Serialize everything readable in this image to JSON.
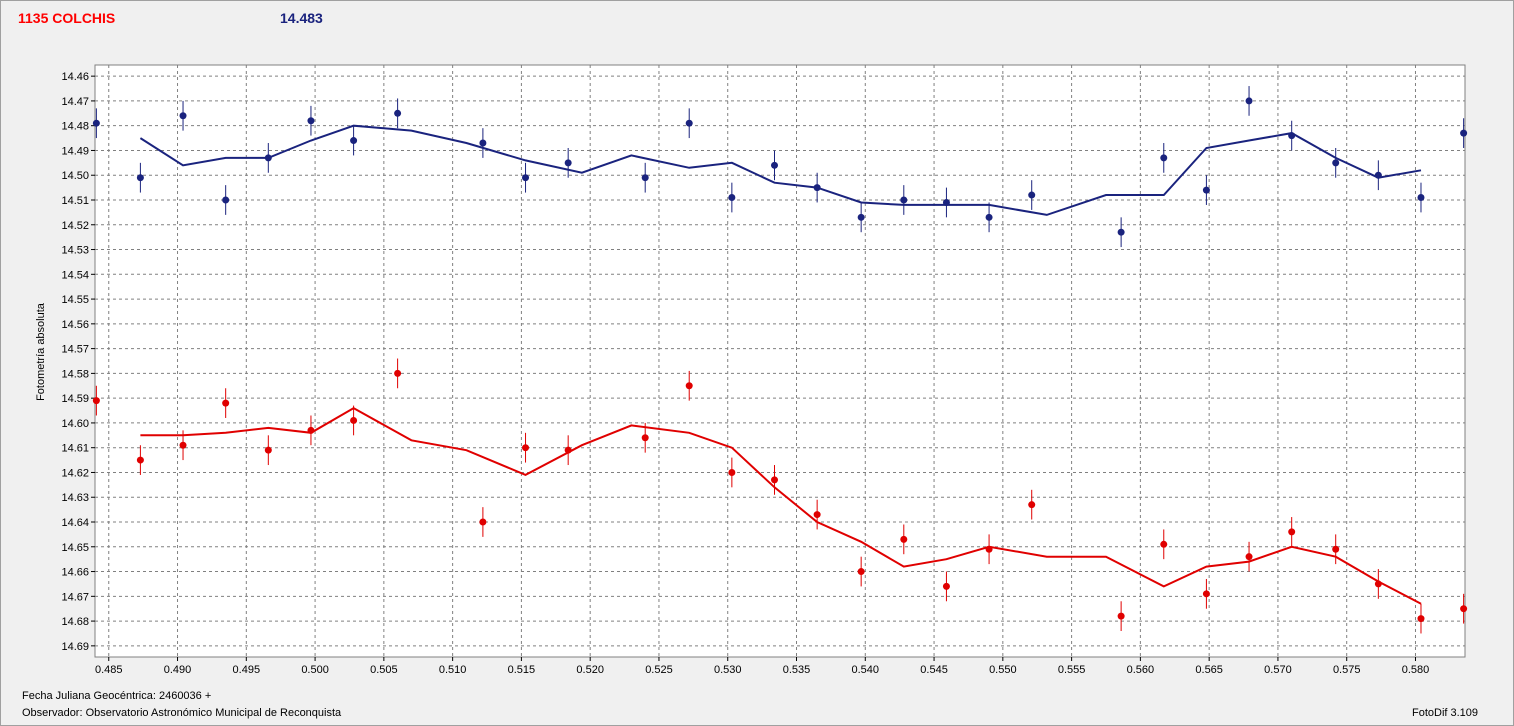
{
  "header": {
    "object_name": "1135 COLCHIS",
    "object_color": "#ff0000",
    "magnitude": "14.483",
    "magnitude_color": "#1a237e"
  },
  "footer": {
    "jd_label": "Fecha Juliana Geocéntrica: 2460036 +",
    "observer_label": "Observador: Observatorio Astronómico Municipal de Reconquista",
    "software": "FotoDif 3.109"
  },
  "chart_data": {
    "type": "scatter",
    "ylabel": "Fotometría absoluta",
    "xlim": [
      0.484,
      0.5836
    ],
    "ylim": [
      14.4555,
      14.6945
    ],
    "y_inverted": true,
    "grid": true,
    "x_ticks": [
      0.485,
      0.49,
      0.495,
      0.5,
      0.505,
      0.51,
      0.515,
      0.52,
      0.525,
      0.53,
      0.535,
      0.54,
      0.545,
      0.55,
      0.555,
      0.56,
      0.565,
      0.57,
      0.575,
      0.58
    ],
    "x_tick_labels": [
      "0.485",
      "0.490",
      "0.495",
      "0.500",
      "0.505",
      "0.510",
      "0.515",
      "0.520",
      "0.525",
      "0.530",
      "0.535",
      "0.540",
      "0.545",
      "0.550",
      "0.555",
      "0.560",
      "0.565",
      "0.570",
      "0.575",
      "0.580"
    ],
    "y_ticks": [
      14.46,
      14.47,
      14.48,
      14.49,
      14.5,
      14.51,
      14.52,
      14.53,
      14.54,
      14.55,
      14.56,
      14.57,
      14.58,
      14.59,
      14.6,
      14.61,
      14.62,
      14.63,
      14.64,
      14.65,
      14.66,
      14.67,
      14.68,
      14.69
    ],
    "y_tick_labels": [
      "14.46",
      "14.47",
      "14.48",
      "14.49",
      "14.50",
      "14.51",
      "14.52",
      "14.53",
      "14.54",
      "14.55",
      "14.56",
      "14.57",
      "14.58",
      "14.59",
      "14.60",
      "14.61",
      "14.62",
      "14.63",
      "14.64",
      "14.65",
      "14.66",
      "14.67",
      "14.68",
      "14.69"
    ],
    "error_bar": 0.006,
    "series": [
      {
        "color": "#1a237e",
        "points": [
          [
            0.4841,
            14.479
          ],
          [
            0.4873,
            14.501
          ],
          [
            0.4904,
            14.476
          ],
          [
            0.4935,
            14.51
          ],
          [
            0.4966,
            14.493
          ],
          [
            0.4997,
            14.478
          ],
          [
            0.5028,
            14.486
          ],
          [
            0.506,
            14.475
          ],
          [
            0.5122,
            14.487
          ],
          [
            0.5153,
            14.501
          ],
          [
            0.5184,
            14.495
          ],
          [
            0.524,
            14.501
          ],
          [
            0.5272,
            14.479
          ],
          [
            0.5303,
            14.509
          ],
          [
            0.5334,
            14.496
          ],
          [
            0.5365,
            14.505
          ],
          [
            0.5397,
            14.517
          ],
          [
            0.5428,
            14.51
          ],
          [
            0.5459,
            14.511
          ],
          [
            0.549,
            14.517
          ],
          [
            0.5521,
            14.508
          ],
          [
            0.5586,
            14.523
          ],
          [
            0.5617,
            14.493
          ],
          [
            0.5648,
            14.506
          ],
          [
            0.5679,
            14.47
          ],
          [
            0.571,
            14.484
          ],
          [
            0.5742,
            14.495
          ],
          [
            0.5773,
            14.5
          ],
          [
            0.5804,
            14.509
          ],
          [
            0.5835,
            14.483
          ]
        ],
        "trend": [
          [
            0.4873,
            14.485
          ],
          [
            0.4904,
            14.496
          ],
          [
            0.4935,
            14.493
          ],
          [
            0.4966,
            14.493
          ],
          [
            0.4997,
            14.486
          ],
          [
            0.5028,
            14.48
          ],
          [
            0.507,
            14.482
          ],
          [
            0.511,
            14.487
          ],
          [
            0.5153,
            14.494
          ],
          [
            0.5194,
            14.499
          ],
          [
            0.523,
            14.492
          ],
          [
            0.5272,
            14.497
          ],
          [
            0.5303,
            14.495
          ],
          [
            0.5334,
            14.503
          ],
          [
            0.5365,
            14.505
          ],
          [
            0.5397,
            14.511
          ],
          [
            0.5428,
            14.512
          ],
          [
            0.5459,
            14.512
          ],
          [
            0.549,
            14.512
          ],
          [
            0.5532,
            14.516
          ],
          [
            0.5575,
            14.508
          ],
          [
            0.5617,
            14.508
          ],
          [
            0.5648,
            14.489
          ],
          [
            0.5679,
            14.486
          ],
          [
            0.571,
            14.483
          ],
          [
            0.5742,
            14.493
          ],
          [
            0.5773,
            14.501
          ],
          [
            0.5804,
            14.498
          ]
        ]
      },
      {
        "color": "#e00000",
        "points": [
          [
            0.4841,
            14.591
          ],
          [
            0.4873,
            14.615
          ],
          [
            0.4904,
            14.609
          ],
          [
            0.4935,
            14.592
          ],
          [
            0.4966,
            14.611
          ],
          [
            0.4997,
            14.603
          ],
          [
            0.5028,
            14.599
          ],
          [
            0.506,
            14.58
          ],
          [
            0.5122,
            14.64
          ],
          [
            0.5153,
            14.61
          ],
          [
            0.5184,
            14.611
          ],
          [
            0.524,
            14.606
          ],
          [
            0.5272,
            14.585
          ],
          [
            0.5303,
            14.62
          ],
          [
            0.5334,
            14.623
          ],
          [
            0.5365,
            14.637
          ],
          [
            0.5397,
            14.66
          ],
          [
            0.5428,
            14.647
          ],
          [
            0.5459,
            14.666
          ],
          [
            0.549,
            14.651
          ],
          [
            0.5521,
            14.633
          ],
          [
            0.5586,
            14.678
          ],
          [
            0.5617,
            14.649
          ],
          [
            0.5648,
            14.669
          ],
          [
            0.5679,
            14.654
          ],
          [
            0.571,
            14.644
          ],
          [
            0.5742,
            14.651
          ],
          [
            0.5773,
            14.665
          ],
          [
            0.5804,
            14.679
          ],
          [
            0.5835,
            14.675
          ]
        ],
        "trend": [
          [
            0.4873,
            14.605
          ],
          [
            0.4904,
            14.605
          ],
          [
            0.4935,
            14.604
          ],
          [
            0.4966,
            14.602
          ],
          [
            0.4997,
            14.604
          ],
          [
            0.5028,
            14.594
          ],
          [
            0.507,
            14.607
          ],
          [
            0.511,
            14.611
          ],
          [
            0.5153,
            14.621
          ],
          [
            0.5194,
            14.609
          ],
          [
            0.523,
            14.601
          ],
          [
            0.5272,
            14.604
          ],
          [
            0.5303,
            14.61
          ],
          [
            0.5334,
            14.626
          ],
          [
            0.5365,
            14.64
          ],
          [
            0.5397,
            14.648
          ],
          [
            0.5428,
            14.658
          ],
          [
            0.5459,
            14.655
          ],
          [
            0.549,
            14.65
          ],
          [
            0.5532,
            14.654
          ],
          [
            0.5575,
            14.654
          ],
          [
            0.5617,
            14.666
          ],
          [
            0.5648,
            14.658
          ],
          [
            0.5679,
            14.656
          ],
          [
            0.571,
            14.65
          ],
          [
            0.5742,
            14.654
          ],
          [
            0.5773,
            14.664
          ],
          [
            0.5804,
            14.673
          ]
        ]
      }
    ]
  }
}
